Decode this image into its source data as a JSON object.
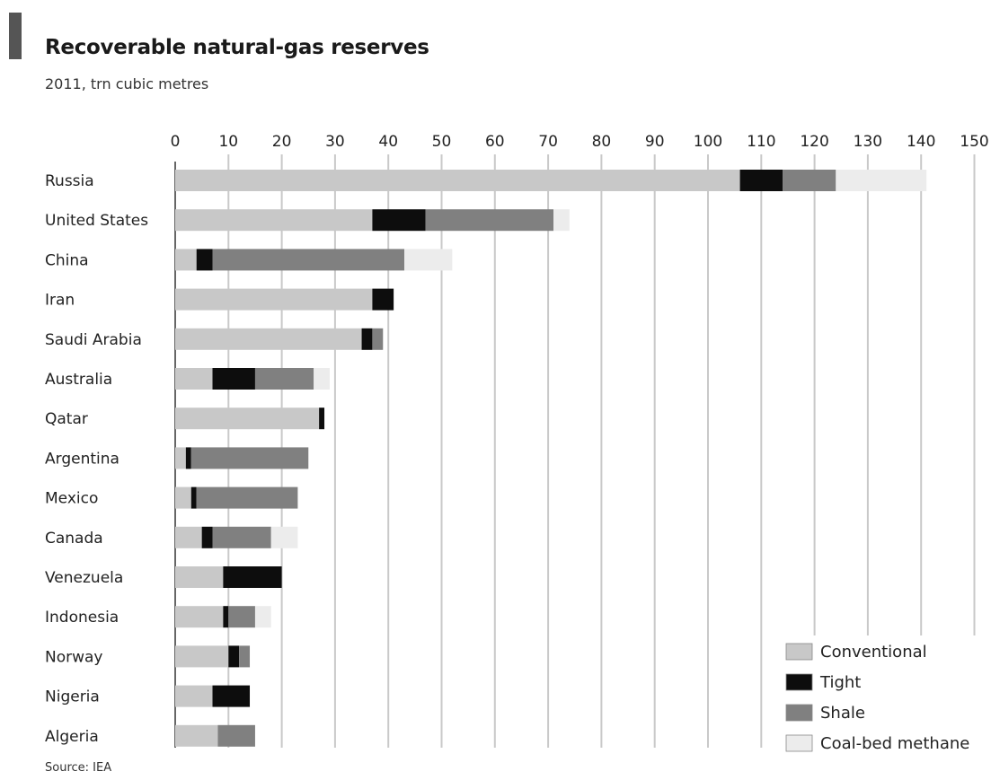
{
  "chart_data": {
    "type": "bar",
    "orientation": "horizontal",
    "stacked": true,
    "title": "Recoverable natural-gas reserves",
    "subtitle": "2011, trn cubic metres",
    "source": "Source: IEA",
    "xlim": [
      0,
      150
    ],
    "x_ticks": [
      0,
      10,
      20,
      30,
      40,
      50,
      60,
      70,
      80,
      90,
      100,
      110,
      120,
      130,
      140,
      150
    ],
    "grid": true,
    "legend_position": "bottom-right",
    "categories": [
      "Russia",
      "United States",
      "China",
      "Iran",
      "Saudi Arabia",
      "Australia",
      "Qatar",
      "Argentina",
      "Mexico",
      "Canada",
      "Venezuela",
      "Indonesia",
      "Norway",
      "Nigeria",
      "Algeria"
    ],
    "series": [
      {
        "name": "Conventional",
        "color": "#c8c8c8",
        "values": [
          106,
          37,
          4,
          37,
          35,
          7,
          27,
          2,
          3,
          5,
          9,
          9,
          10,
          7,
          8
        ]
      },
      {
        "name": "Tight",
        "color": "#0d0d0d",
        "values": [
          8,
          10,
          3,
          4,
          2,
          8,
          1,
          1,
          1,
          2,
          11,
          1,
          2,
          7,
          0
        ]
      },
      {
        "name": "Shale",
        "color": "#808080",
        "values": [
          10,
          24,
          36,
          0,
          2,
          11,
          0,
          22,
          19,
          11,
          0,
          5,
          2,
          0,
          7
        ]
      },
      {
        "name": "Coal-bed methane",
        "color": "#ececec",
        "values": [
          17,
          3,
          9,
          0,
          0,
          3,
          0,
          0,
          0,
          5,
          0,
          3,
          0,
          0,
          0
        ]
      }
    ]
  }
}
